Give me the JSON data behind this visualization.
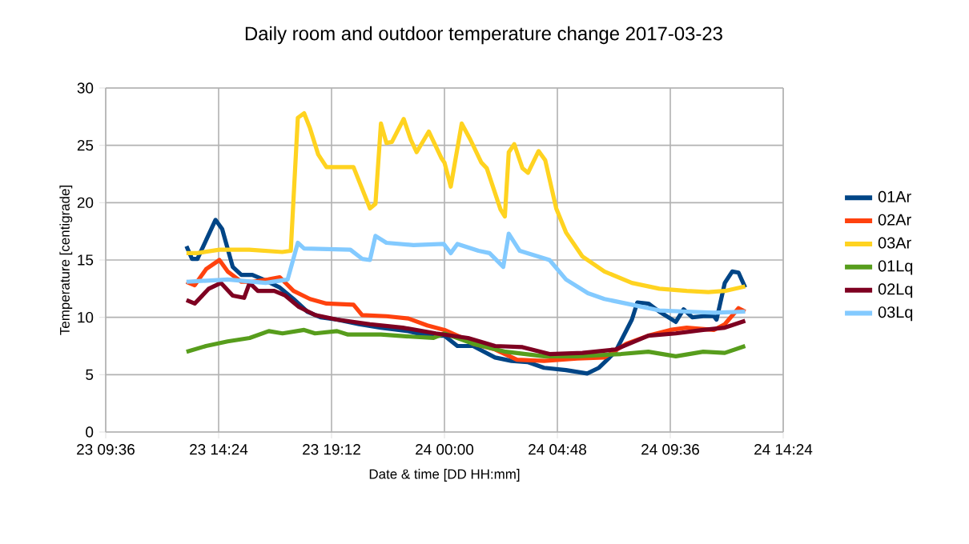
{
  "chart_data": {
    "type": "line",
    "title": "Daily room and outdoor temperature change 2017-03-23",
    "xlabel": "Date & time [DD HH:mm]",
    "ylabel": "Temperature [centigrade]",
    "xlim": [
      "2017-03-23T09:36",
      "2017-03-24T14:24"
    ],
    "xticks": [
      {
        "value": "2017-03-23T09:36",
        "label": "23 09:36"
      },
      {
        "value": "2017-03-23T14:24",
        "label": "23 14:24"
      },
      {
        "value": "2017-03-23T19:12",
        "label": "23 19:12"
      },
      {
        "value": "2017-03-24T00:00",
        "label": "24 00:00"
      },
      {
        "value": "2017-03-24T04:48",
        "label": "24 04:48"
      },
      {
        "value": "2017-03-24T09:36",
        "label": "24 09:36"
      },
      {
        "value": "2017-03-24T14:24",
        "label": "24 14:24"
      }
    ],
    "ylim": [
      0,
      30
    ],
    "yticks": [
      0,
      5,
      10,
      15,
      20,
      25,
      30
    ],
    "grid": true,
    "legend": "right",
    "marker": "none",
    "line_style": "solid",
    "series": [
      {
        "name": "01Ar",
        "color": "#004586",
        "x": [
          "2017-03-23T13:02",
          "2017-03-23T13:16",
          "2017-03-23T13:30",
          "2017-03-23T14:16",
          "2017-03-23T14:33",
          "2017-03-23T15:00",
          "2017-03-23T15:22",
          "2017-03-23T15:50",
          "2017-03-23T16:18",
          "2017-03-23T17:00",
          "2017-03-23T17:35",
          "2017-03-23T18:10",
          "2017-03-23T18:44",
          "2017-03-23T19:26",
          "2017-03-23T20:22",
          "2017-03-23T21:18",
          "2017-03-23T22:28",
          "2017-03-23T23:16",
          "2017-03-24T00:00",
          "2017-03-24T00:33",
          "2017-03-24T01:13",
          "2017-03-24T02:09",
          "2017-03-24T02:51",
          "2017-03-24T03:32",
          "2017-03-24T04:14",
          "2017-03-24T05:10",
          "2017-03-24T06:04",
          "2017-03-24T06:34",
          "2017-03-24T07:16",
          "2017-03-24T07:58",
          "2017-03-24T08:12",
          "2017-03-24T08:40",
          "2017-03-24T09:08",
          "2017-03-24T09:50",
          "2017-03-24T10:10",
          "2017-03-24T10:32",
          "2017-03-24T11:00",
          "2017-03-24T11:27",
          "2017-03-24T11:34",
          "2017-03-24T11:55",
          "2017-03-24T12:14",
          "2017-03-24T12:30",
          "2017-03-24T12:47"
        ],
        "values": [
          16.2,
          15.1,
          15.1,
          18.5,
          17.7,
          14.4,
          13.7,
          13.7,
          13.3,
          12.6,
          11.6,
          10.5,
          10.0,
          9.8,
          9.4,
          9.1,
          8.8,
          8.4,
          8.4,
          7.5,
          7.5,
          6.5,
          6.2,
          6.1,
          5.6,
          5.4,
          5.1,
          5.6,
          7.0,
          9.8,
          11.3,
          11.2,
          10.5,
          9.6,
          10.7,
          10.0,
          10.1,
          10.1,
          9.8,
          13.0,
          14.0,
          13.9,
          12.6
        ]
      },
      {
        "name": "02Ar",
        "color": "#ff420e",
        "x": [
          "2017-03-23T13:02",
          "2017-03-23T13:23",
          "2017-03-23T13:52",
          "2017-03-23T14:26",
          "2017-03-23T14:47",
          "2017-03-23T15:22",
          "2017-03-23T15:50",
          "2017-03-23T16:30",
          "2017-03-23T17:00",
          "2017-03-23T17:35",
          "2017-03-23T18:17",
          "2017-03-23T18:59",
          "2017-03-23T20:08",
          "2017-03-23T20:30",
          "2017-03-23T21:32",
          "2017-03-23T22:28",
          "2017-03-23T23:16",
          "2017-03-24T00:00",
          "2017-03-24T00:46",
          "2017-03-24T01:13",
          "2017-03-24T02:09",
          "2017-03-24T03:05",
          "2017-03-24T04:14",
          "2017-03-24T05:38",
          "2017-03-24T06:48",
          "2017-03-24T07:44",
          "2017-03-24T08:40",
          "2017-03-24T09:36",
          "2017-03-24T10:18",
          "2017-03-24T11:27",
          "2017-03-24T11:55",
          "2017-03-24T12:30",
          "2017-03-24T12:47"
        ],
        "values": [
          13.1,
          12.8,
          14.2,
          15.0,
          14.0,
          13.1,
          13.1,
          13.3,
          13.5,
          12.3,
          11.6,
          11.2,
          11.1,
          10.2,
          10.1,
          9.9,
          9.3,
          8.9,
          8.2,
          7.7,
          7.2,
          6.3,
          6.2,
          6.4,
          6.5,
          7.7,
          8.4,
          8.9,
          9.1,
          8.9,
          9.4,
          10.8,
          10.5
        ]
      },
      {
        "name": "03Ar",
        "color": "#ffd320",
        "x": [
          "2017-03-23T13:02",
          "2017-03-23T13:30",
          "2017-03-23T14:26",
          "2017-03-23T15:42",
          "2017-03-23T17:06",
          "2017-03-23T17:28",
          "2017-03-23T17:46",
          "2017-03-23T18:02",
          "2017-03-23T18:17",
          "2017-03-23T18:38",
          "2017-03-23T18:59",
          "2017-03-23T20:08",
          "2017-03-23T20:50",
          "2017-03-23T21:04",
          "2017-03-23T21:18",
          "2017-03-23T21:32",
          "2017-03-23T21:46",
          "2017-03-23T22:16",
          "2017-03-23T22:34",
          "2017-03-23T22:49",
          "2017-03-23T23:20",
          "2017-03-23T23:52",
          "2017-03-24T00:00",
          "2017-03-24T00:16",
          "2017-03-24T00:44",
          "2017-03-24T01:06",
          "2017-03-24T01:34",
          "2017-03-24T01:48",
          "2017-03-24T02:23",
          "2017-03-24T02:34",
          "2017-03-24T02:44",
          "2017-03-24T02:58",
          "2017-03-24T03:19",
          "2017-03-24T03:33",
          "2017-03-24T04:00",
          "2017-03-24T04:17",
          "2017-03-24T04:45",
          "2017-03-24T05:10",
          "2017-03-24T05:52",
          "2017-03-24T06:48",
          "2017-03-24T07:58",
          "2017-03-24T09:08",
          "2017-03-24T10:18",
          "2017-03-24T11:13",
          "2017-03-24T11:55",
          "2017-03-24T12:47"
        ],
        "values": [
          15.6,
          15.6,
          15.9,
          15.9,
          15.7,
          15.8,
          27.4,
          27.8,
          26.5,
          24.2,
          23.1,
          23.1,
          19.5,
          19.9,
          26.9,
          25.2,
          25.3,
          27.3,
          25.5,
          24.4,
          26.2,
          23.9,
          23.5,
          21.4,
          26.9,
          25.5,
          23.5,
          23.0,
          19.4,
          18.8,
          24.4,
          25.1,
          23.0,
          22.6,
          24.5,
          23.7,
          19.5,
          17.4,
          15.3,
          14.0,
          13.0,
          12.5,
          12.3,
          12.2,
          12.3,
          12.7
        ]
      },
      {
        "name": "01Lq",
        "color": "#579d1c",
        "x": [
          "2017-03-23T13:02",
          "2017-03-23T13:52",
          "2017-03-23T14:47",
          "2017-03-23T15:43",
          "2017-03-23T16:32",
          "2017-03-23T17:07",
          "2017-03-23T18:02",
          "2017-03-23T18:30",
          "2017-03-23T19:26",
          "2017-03-23T19:54",
          "2017-03-23T21:18",
          "2017-03-23T22:41",
          "2017-03-23T23:32",
          "2017-03-24T00:00",
          "2017-03-24T01:13",
          "2017-03-24T02:36",
          "2017-03-24T04:14",
          "2017-03-24T05:38",
          "2017-03-24T07:30",
          "2017-03-24T08:40",
          "2017-03-24T09:50",
          "2017-03-24T11:00",
          "2017-03-24T11:55",
          "2017-03-24T12:47"
        ],
        "values": [
          7.0,
          7.5,
          7.9,
          8.2,
          8.8,
          8.6,
          8.9,
          8.6,
          8.8,
          8.5,
          8.5,
          8.3,
          8.2,
          8.6,
          7.7,
          7.0,
          6.6,
          6.6,
          6.8,
          7.0,
          6.6,
          7.0,
          6.9,
          7.5
        ]
      },
      {
        "name": "02Lq",
        "color": "#7e0021",
        "x": [
          "2017-03-23T13:02",
          "2017-03-23T13:23",
          "2017-03-23T13:59",
          "2017-03-23T14:30",
          "2017-03-23T15:00",
          "2017-03-23T15:29",
          "2017-03-23T15:43",
          "2017-03-23T16:04",
          "2017-03-23T16:46",
          "2017-03-23T17:14",
          "2017-03-23T17:49",
          "2017-03-23T18:30",
          "2017-03-23T19:26",
          "2017-03-23T20:50",
          "2017-03-23T22:14",
          "2017-03-23T23:38",
          "2017-03-24T01:00",
          "2017-03-24T02:09",
          "2017-03-24T03:19",
          "2017-03-24T04:28",
          "2017-03-24T05:52",
          "2017-03-24T07:16",
          "2017-03-24T08:40",
          "2017-03-24T09:50",
          "2017-03-24T11:00",
          "2017-03-24T11:55",
          "2017-03-24T12:47"
        ],
        "values": [
          11.5,
          11.2,
          12.5,
          13.0,
          11.9,
          11.7,
          13.0,
          12.3,
          12.3,
          11.9,
          10.9,
          10.2,
          9.8,
          9.4,
          9.1,
          8.6,
          8.2,
          7.5,
          7.4,
          6.8,
          6.9,
          7.2,
          8.4,
          8.6,
          8.9,
          9.1,
          9.7
        ]
      },
      {
        "name": "03Lq",
        "color": "#83caff",
        "x": [
          "2017-03-23T13:02",
          "2017-03-23T14:47",
          "2017-03-23T16:24",
          "2017-03-23T17:20",
          "2017-03-23T17:46",
          "2017-03-23T18:02",
          "2017-03-23T20:00",
          "2017-03-23T20:30",
          "2017-03-23T20:50",
          "2017-03-23T21:04",
          "2017-03-23T21:32",
          "2017-03-23T22:41",
          "2017-03-23T23:58",
          "2017-03-24T00:16",
          "2017-03-24T00:33",
          "2017-03-24T01:27",
          "2017-03-24T01:55",
          "2017-03-24T02:30",
          "2017-03-24T02:44",
          "2017-03-24T03:12",
          "2017-03-24T04:00",
          "2017-03-24T04:28",
          "2017-03-24T05:10",
          "2017-03-24T06:06",
          "2017-03-24T06:48",
          "2017-03-24T07:58",
          "2017-03-24T09:08",
          "2017-03-24T10:18",
          "2017-03-24T11:27",
          "2017-03-24T12:47"
        ],
        "values": [
          13.1,
          13.3,
          13.0,
          13.3,
          16.5,
          16.0,
          15.9,
          15.1,
          15.0,
          17.1,
          16.5,
          16.3,
          16.4,
          15.6,
          16.4,
          15.8,
          15.6,
          14.4,
          17.3,
          15.8,
          15.3,
          15.0,
          13.3,
          12.1,
          11.6,
          11.1,
          10.6,
          10.5,
          10.4,
          10.5
        ]
      }
    ]
  }
}
